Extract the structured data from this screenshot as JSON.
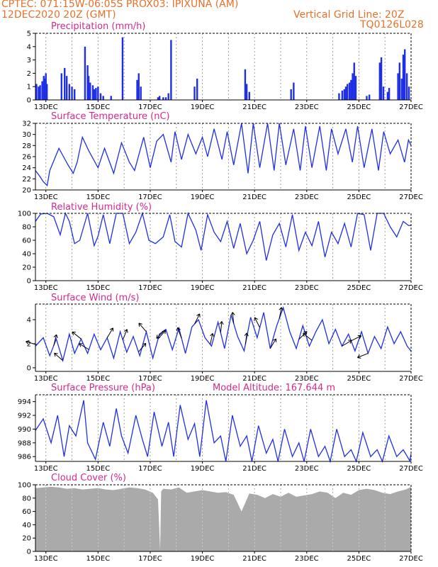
{
  "header": {
    "line1": "CPTEC:   071:15W-06:05S   PROX03: IPIXUNA (AM)",
    "line2": "12DEC2020 20Z (GMT)",
    "right1": "Vertical Grid Line: 20Z",
    "right2": "TQ0126L028"
  },
  "colors": {
    "header": "#e8702a",
    "panel_title": "#d42a8c",
    "series": "#1f2fe6",
    "cloud": "#aaaaaa",
    "wind_arrow": "#000000",
    "grid": "#8a8a8a"
  },
  "x_axis": {
    "tick_labels": [
      "13DEC",
      "15DEC",
      "17DEC",
      "19DEC",
      "21DEC",
      "23DEC",
      "25DEC",
      "27DEC"
    ],
    "tick_days": [
      13,
      15,
      17,
      19,
      21,
      23,
      25,
      27
    ],
    "range_days": [
      12.6,
      27.0
    ],
    "grid": "dotted vertical lines at every day (20Z)"
  },
  "chart_data": [
    {
      "type": "bar",
      "title": "Precipitation (mm/h)",
      "y_ticks": [
        0,
        1,
        2,
        3,
        4,
        5
      ],
      "ylim": [
        0,
        5
      ],
      "x_units": "day of December 2020",
      "x": [
        12.64,
        12.72,
        12.78,
        12.86,
        12.92,
        12.96,
        13.0,
        13.04,
        13.6,
        13.72,
        13.8,
        13.9,
        14.0,
        14.1,
        14.5,
        14.6,
        14.64,
        14.7,
        14.8,
        14.86,
        14.92,
        15.0,
        15.1,
        15.2,
        15.5,
        15.94,
        16.5,
        16.56,
        16.64,
        17.3,
        17.36,
        17.5,
        17.6,
        17.7,
        17.8,
        18.7,
        18.8,
        20.64,
        20.7,
        20.8,
        22.4,
        22.5,
        24.24,
        24.36,
        24.44,
        24.5,
        24.56,
        24.64,
        24.7,
        24.76,
        24.82,
        24.88,
        25.3,
        25.4,
        25.8,
        25.86,
        25.94,
        26.1,
        26.16,
        26.5,
        26.56,
        26.64,
        26.7,
        26.76,
        26.84,
        26.92
      ],
      "values": [
        1.2,
        1.0,
        1.1,
        1.4,
        1.8,
        1.6,
        2.0,
        1.2,
        2.0,
        2.4,
        1.8,
        1.2,
        1.0,
        0.8,
        4.0,
        2.6,
        1.8,
        1.3,
        1.1,
        0.8,
        0.9,
        1.0,
        0.5,
        0.3,
        0.3,
        4.7,
        1.5,
        2.0,
        1.0,
        0.2,
        0.3,
        0.2,
        0.2,
        0.5,
        4.5,
        1.0,
        1.6,
        2.3,
        1.2,
        0.6,
        0.8,
        1.3,
        0.5,
        0.7,
        0.8,
        1.0,
        1.2,
        1.3,
        1.5,
        2.0,
        2.8,
        1.8,
        0.3,
        0.4,
        2.8,
        3.2,
        1.0,
        0.6,
        0.9,
        2.0,
        2.8,
        1.6,
        3.4,
        3.8,
        2.0,
        1.0
      ]
    },
    {
      "type": "line",
      "title": "Surface Temperature (nC)",
      "y_ticks": [
        20,
        22,
        24,
        26,
        28,
        30,
        32
      ],
      "ylim": [
        20,
        32
      ],
      "x_units": "day of December 2020",
      "x": [
        12.6,
        12.76,
        12.9,
        13.05,
        13.15,
        13.5,
        13.85,
        14.05,
        14.2,
        14.4,
        14.65,
        15.0,
        15.25,
        15.6,
        15.9,
        16.2,
        16.4,
        16.75,
        17.0,
        17.25,
        17.5,
        17.8,
        17.95,
        18.2,
        18.45,
        18.75,
        19.0,
        19.2,
        19.45,
        19.75,
        19.95,
        20.2,
        20.5,
        20.75,
        20.95,
        21.2,
        21.5,
        21.75,
        21.95,
        22.2,
        22.5,
        22.75,
        22.95,
        23.2,
        23.5,
        23.75,
        23.95,
        24.2,
        24.5,
        24.75,
        24.95,
        25.2,
        25.5,
        25.75,
        25.95,
        26.2,
        26.5,
        26.75,
        26.9,
        27.0
      ],
      "values": [
        23.5,
        22.5,
        21.5,
        20.8,
        23.5,
        27.5,
        24.5,
        23.0,
        25.0,
        29.5,
        27.0,
        24.0,
        27.5,
        23.0,
        28.5,
        25.0,
        23.5,
        29.5,
        24.0,
        28.8,
        30.0,
        25.0,
        30.5,
        25.5,
        30.0,
        26.5,
        29.5,
        26.0,
        31.0,
        25.5,
        30.5,
        24.5,
        32.0,
        23.0,
        32.5,
        24.0,
        32.0,
        23.5,
        32.0,
        24.5,
        31.0,
        23.5,
        31.5,
        24.0,
        31.5,
        23.5,
        31.0,
        26.5,
        31.0,
        25.0,
        31.5,
        24.0,
        31.0,
        23.5,
        30.5,
        26.5,
        29.0,
        25.0,
        29.0,
        28.0
      ]
    },
    {
      "type": "line",
      "title": "Relative Humidity (%)",
      "y_ticks": [
        0,
        20,
        40,
        60,
        80,
        100
      ],
      "ylim": [
        0,
        100
      ],
      "x_units": "day of December 2020",
      "x": [
        12.6,
        12.8,
        13.05,
        13.3,
        13.55,
        13.75,
        13.9,
        14.1,
        14.3,
        14.6,
        14.85,
        15.0,
        15.2,
        15.45,
        15.7,
        15.95,
        16.2,
        16.45,
        16.7,
        16.95,
        17.2,
        17.5,
        17.75,
        17.95,
        18.2,
        18.45,
        18.75,
        18.95,
        19.2,
        19.45,
        19.7,
        19.95,
        20.2,
        20.45,
        20.7,
        20.95,
        21.2,
        21.45,
        21.7,
        21.95,
        22.2,
        22.45,
        22.7,
        22.95,
        23.2,
        23.45,
        23.7,
        23.95,
        24.2,
        24.45,
        24.7,
        24.95,
        25.2,
        25.45,
        25.7,
        25.95,
        26.2,
        26.45,
        26.7,
        26.9,
        27.0
      ],
      "values": [
        88,
        99,
        100,
        95,
        68,
        100,
        88,
        55,
        60,
        100,
        52,
        66,
        98,
        55,
        100,
        100,
        55,
        72,
        100,
        60,
        55,
        65,
        98,
        58,
        50,
        100,
        75,
        45,
        98,
        72,
        58,
        88,
        48,
        85,
        40,
        60,
        88,
        30,
        68,
        85,
        50,
        98,
        45,
        72,
        52,
        88,
        35,
        72,
        55,
        85,
        50,
        100,
        98,
        45,
        100,
        100,
        80,
        65,
        88,
        82,
        82
      ]
    },
    {
      "type": "line",
      "title": "Surface Wind (m/s)",
      "y_ticks": [
        0,
        2,
        4
      ],
      "ylim": [
        -0.3,
        5.3
      ],
      "x_units": "day of December 2020",
      "x": [
        12.6,
        12.9,
        13.15,
        13.4,
        13.65,
        13.9,
        14.1,
        14.35,
        14.6,
        14.85,
        15.1,
        15.35,
        15.6,
        15.85,
        16.1,
        16.35,
        16.6,
        16.85,
        17.1,
        17.35,
        17.6,
        17.85,
        18.1,
        18.35,
        18.6,
        18.85,
        19.1,
        19.35,
        19.6,
        19.85,
        20.1,
        20.35,
        20.6,
        20.85,
        21.1,
        21.35,
        21.6,
        21.85,
        22.1,
        22.35,
        22.6,
        22.85,
        23.1,
        23.35,
        23.6,
        23.85,
        24.1,
        24.35,
        24.6,
        24.85,
        25.1,
        25.35,
        25.6,
        25.85,
        26.1,
        26.35,
        26.6,
        26.85,
        27.0
      ],
      "values": [
        1.8,
        2.5,
        1.0,
        2.4,
        0.6,
        2.8,
        1.2,
        2.4,
        1.2,
        2.8,
        1.5,
        2.5,
        0.8,
        3.0,
        1.3,
        2.6,
        1.0,
        3.0,
        0.8,
        2.8,
        3.2,
        1.5,
        3.3,
        1.2,
        3.4,
        4.0,
        2.5,
        1.8,
        3.8,
        1.6,
        4.4,
        2.6,
        1.4,
        4.2,
        2.5,
        4.6,
        1.6,
        3.5,
        5.0,
        3.0,
        1.6,
        3.5,
        1.8,
        3.0,
        4.0,
        2.0,
        3.2,
        1.8,
        2.8,
        1.4,
        3.0,
        1.2,
        2.6,
        1.6,
        3.4,
        2.0,
        3.0,
        1.8,
        1.4
      ],
      "arrows": {
        "x": [
          12.65,
          13.3,
          13.65,
          14.35,
          14.65,
          15.35,
          15.95,
          16.55,
          16.85,
          17.3,
          17.55,
          18.2,
          18.7,
          19.3,
          19.7,
          20.2,
          20.65,
          21.2,
          21.6,
          21.95,
          22.7,
          23.2,
          24.35,
          24.7,
          25.35
        ],
        "u": [
          -1.0,
          0.2,
          -0.8,
          -1.0,
          -1.0,
          0.6,
          0.4,
          0.6,
          -0.7,
          0.8,
          -1.0,
          -0.3,
          0.3,
          0.2,
          0.1,
          -0.1,
          0.1,
          -0.5,
          0.6,
          0.2,
          1.0,
          -1.0,
          1.0,
          1.0,
          -1.0
        ],
        "v": [
          0.3,
          0.8,
          0.7,
          0.8,
          0.6,
          1.0,
          1.0,
          0.7,
          0.8,
          0.9,
          -1.0,
          0.8,
          0.6,
          0.9,
          1.0,
          1.0,
          0.8,
          1.0,
          1.0,
          1.0,
          1.0,
          0.8,
          0.6,
          0.5,
          -0.4
        ]
      }
    },
    {
      "type": "line",
      "title": "Surface Pressure (hPa)",
      "annotation": "Model Altitude: 167.644  m",
      "y_ticks": [
        986,
        988,
        990,
        992,
        994
      ],
      "ylim": [
        985.3,
        995
      ],
      "x_units": "day of December 2020",
      "x": [
        12.6,
        12.9,
        13.2,
        13.45,
        13.7,
        13.9,
        14.15,
        14.45,
        14.6,
        14.9,
        15.2,
        15.45,
        15.7,
        15.9,
        16.15,
        16.45,
        16.7,
        16.9,
        17.15,
        17.45,
        17.7,
        17.9,
        18.15,
        18.45,
        18.7,
        18.9,
        19.15,
        19.45,
        19.7,
        19.9,
        20.15,
        20.45,
        20.7,
        20.9,
        21.15,
        21.45,
        21.7,
        21.9,
        22.15,
        22.45,
        22.7,
        22.9,
        23.15,
        23.45,
        23.7,
        23.9,
        24.15,
        24.45,
        24.7,
        24.9,
        25.15,
        25.45,
        25.7,
        25.9,
        26.15,
        26.45,
        26.7,
        26.95,
        27.0
      ],
      "values": [
        989.8,
        991.5,
        988.0,
        992.0,
        986.0,
        990.5,
        989.0,
        994.2,
        988.0,
        985.6,
        991.0,
        987.5,
        993.0,
        989.0,
        986.5,
        992.0,
        988.5,
        986.0,
        992.5,
        987.5,
        991.0,
        986.0,
        993.5,
        988.5,
        990.8,
        986.0,
        994.2,
        988.0,
        989.0,
        985.0,
        992.0,
        987.5,
        989.0,
        984.6,
        990.5,
        986.5,
        988.5,
        984.8,
        990.0,
        986.0,
        988.0,
        984.8,
        990.0,
        986.0,
        987.5,
        984.8,
        990.0,
        986.0,
        987.0,
        984.8,
        989.5,
        986.0,
        987.0,
        985.0,
        989.0,
        986.0,
        987.0,
        985.4,
        986.4
      ]
    },
    {
      "type": "area",
      "title": "Cloud Cover (%)",
      "y_ticks": [
        0,
        20,
        40,
        60,
        80,
        100
      ],
      "ylim": [
        0,
        100
      ],
      "x_units": "day of December 2020",
      "x": [
        12.6,
        12.9,
        13.2,
        13.5,
        13.8,
        14.1,
        14.4,
        14.7,
        15.0,
        15.3,
        15.6,
        15.9,
        16.2,
        16.5,
        16.8,
        17.1,
        17.3,
        17.38,
        17.42,
        17.5,
        17.8,
        18.1,
        18.4,
        18.7,
        19.0,
        19.3,
        19.6,
        19.9,
        20.2,
        20.5,
        20.8,
        21.1,
        21.4,
        21.7,
        22.0,
        22.3,
        22.6,
        22.9,
        23.2,
        23.5,
        23.8,
        24.1,
        24.4,
        24.7,
        25.0,
        25.3,
        25.6,
        25.9,
        26.2,
        26.5,
        26.8,
        27.0
      ],
      "values": [
        95,
        96,
        97,
        96,
        94,
        95,
        93,
        94,
        95,
        93,
        92,
        94,
        96,
        95,
        93,
        88,
        78,
        2,
        90,
        94,
        93,
        96,
        88,
        90,
        92,
        90,
        88,
        89,
        85,
        60,
        87,
        85,
        80,
        86,
        82,
        88,
        82,
        84,
        86,
        90,
        88,
        80,
        88,
        85,
        92,
        94,
        92,
        88,
        86,
        90,
        93,
        97
      ]
    }
  ]
}
